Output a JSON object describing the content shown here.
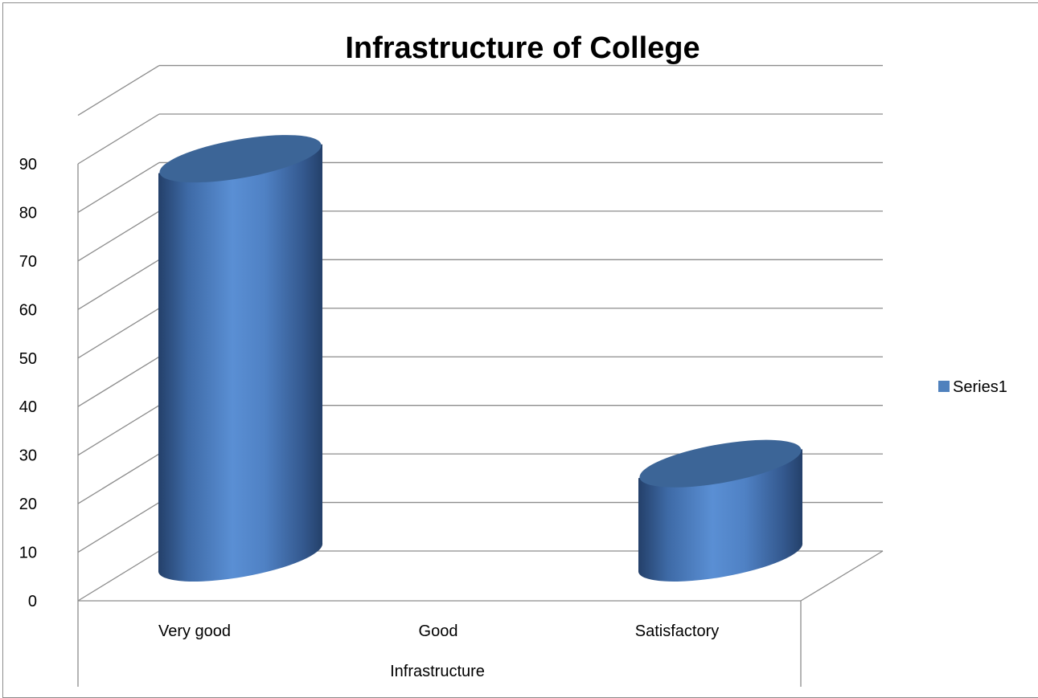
{
  "chart_data": {
    "type": "bar",
    "title": "Infrastructure of College",
    "xlabel": "Infrastructure",
    "ylabel": "",
    "categories": [
      "Very good",
      "Good",
      "Satisfactory"
    ],
    "series": [
      {
        "name": "Series1",
        "values": [
          85,
          0,
          20
        ]
      }
    ],
    "ylim": [
      0,
      90
    ],
    "yticks": [
      0,
      10,
      20,
      30,
      40,
      50,
      60,
      70,
      80,
      90
    ],
    "grid": true,
    "legend": "right",
    "style": "3d-cylinder",
    "colors": {
      "bar": "#4f81bd",
      "bar_dark": "#2c4d7a",
      "bar_top": "#3c6597",
      "grid": "#8c8c8c"
    }
  }
}
